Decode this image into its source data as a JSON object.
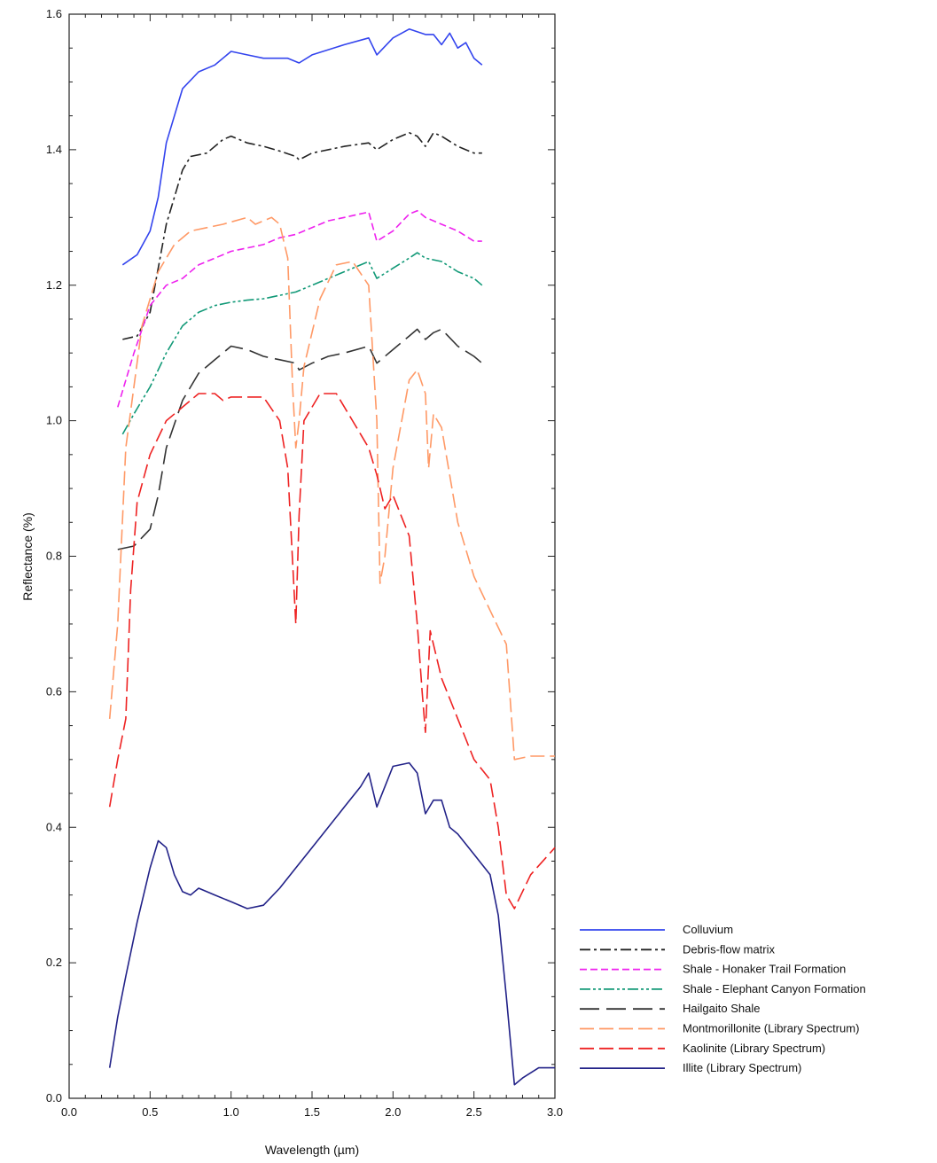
{
  "chart_data": {
    "type": "line",
    "title": "",
    "xlabel": "Wavelength (µm)",
    "ylabel": "Reflectance (%)",
    "xlim": [
      0.0,
      3.0
    ],
    "ylim": [
      0.0,
      1.6
    ],
    "xticks": [
      "0.0",
      "0.5",
      "1.0",
      "1.5",
      "2.0",
      "2.5",
      "3.0"
    ],
    "yticks": [
      "0.0",
      "0.2",
      "0.4",
      "0.6",
      "0.8",
      "1.0",
      "1.2",
      "1.4",
      "1.6"
    ],
    "grid": false,
    "legend_position": "bottom-right outside",
    "series": [
      {
        "name": "Colluvium",
        "color": "#3344ee",
        "dash": "solid",
        "points": [
          [
            0.33,
            1.23
          ],
          [
            0.42,
            1.245
          ],
          [
            0.5,
            1.28
          ],
          [
            0.55,
            1.33
          ],
          [
            0.6,
            1.41
          ],
          [
            0.7,
            1.49
          ],
          [
            0.8,
            1.515
          ],
          [
            0.9,
            1.525
          ],
          [
            1.0,
            1.545
          ],
          [
            1.1,
            1.54
          ],
          [
            1.2,
            1.535
          ],
          [
            1.35,
            1.535
          ],
          [
            1.42,
            1.528
          ],
          [
            1.5,
            1.54
          ],
          [
            1.7,
            1.555
          ],
          [
            1.85,
            1.565
          ],
          [
            1.9,
            1.54
          ],
          [
            2.0,
            1.565
          ],
          [
            2.1,
            1.578
          ],
          [
            2.2,
            1.57
          ],
          [
            2.25,
            1.57
          ],
          [
            2.3,
            1.555
          ],
          [
            2.35,
            1.572
          ],
          [
            2.4,
            1.55
          ],
          [
            2.45,
            1.558
          ],
          [
            2.5,
            1.535
          ],
          [
            2.55,
            1.525
          ]
        ]
      },
      {
        "name": "Debris-flow matrix",
        "color": "#222222",
        "dash": "dashdot",
        "points": [
          [
            0.33,
            1.12
          ],
          [
            0.42,
            1.125
          ],
          [
            0.5,
            1.16
          ],
          [
            0.6,
            1.29
          ],
          [
            0.7,
            1.37
          ],
          [
            0.75,
            1.39
          ],
          [
            0.85,
            1.395
          ],
          [
            0.95,
            1.415
          ],
          [
            1.0,
            1.42
          ],
          [
            1.1,
            1.41
          ],
          [
            1.2,
            1.405
          ],
          [
            1.3,
            1.398
          ],
          [
            1.4,
            1.39
          ],
          [
            1.42,
            1.385
          ],
          [
            1.5,
            1.395
          ],
          [
            1.7,
            1.405
          ],
          [
            1.85,
            1.41
          ],
          [
            1.9,
            1.4
          ],
          [
            2.0,
            1.415
          ],
          [
            2.1,
            1.425
          ],
          [
            2.15,
            1.42
          ],
          [
            2.2,
            1.405
          ],
          [
            2.25,
            1.425
          ],
          [
            2.3,
            1.42
          ],
          [
            2.4,
            1.405
          ],
          [
            2.5,
            1.395
          ],
          [
            2.55,
            1.395
          ]
        ]
      },
      {
        "name": "Shale - Honaker Trail Formation",
        "color": "#ee22ee",
        "dash": "shortdash",
        "points": [
          [
            0.3,
            1.02
          ],
          [
            0.4,
            1.1
          ],
          [
            0.5,
            1.17
          ],
          [
            0.6,
            1.2
          ],
          [
            0.7,
            1.21
          ],
          [
            0.8,
            1.23
          ],
          [
            0.9,
            1.24
          ],
          [
            1.0,
            1.25
          ],
          [
            1.1,
            1.255
          ],
          [
            1.2,
            1.26
          ],
          [
            1.3,
            1.27
          ],
          [
            1.4,
            1.275
          ],
          [
            1.5,
            1.285
          ],
          [
            1.6,
            1.295
          ],
          [
            1.7,
            1.3
          ],
          [
            1.85,
            1.308
          ],
          [
            1.9,
            1.265
          ],
          [
            2.0,
            1.28
          ],
          [
            2.1,
            1.305
          ],
          [
            2.15,
            1.31
          ],
          [
            2.2,
            1.3
          ],
          [
            2.3,
            1.29
          ],
          [
            2.4,
            1.28
          ],
          [
            2.5,
            1.265
          ],
          [
            2.55,
            1.265
          ]
        ]
      },
      {
        "name": "Shale - Elephant Canyon Formation",
        "color": "#119977",
        "dash": "dashdotdot",
        "points": [
          [
            0.33,
            0.98
          ],
          [
            0.4,
            1.01
          ],
          [
            0.5,
            1.05
          ],
          [
            0.6,
            1.1
          ],
          [
            0.7,
            1.14
          ],
          [
            0.8,
            1.16
          ],
          [
            0.9,
            1.17
          ],
          [
            1.0,
            1.175
          ],
          [
            1.1,
            1.178
          ],
          [
            1.2,
            1.18
          ],
          [
            1.3,
            1.185
          ],
          [
            1.4,
            1.19
          ],
          [
            1.5,
            1.2
          ],
          [
            1.6,
            1.21
          ],
          [
            1.7,
            1.22
          ],
          [
            1.85,
            1.235
          ],
          [
            1.9,
            1.21
          ],
          [
            2.0,
            1.225
          ],
          [
            2.1,
            1.24
          ],
          [
            2.15,
            1.248
          ],
          [
            2.2,
            1.24
          ],
          [
            2.3,
            1.235
          ],
          [
            2.4,
            1.22
          ],
          [
            2.5,
            1.21
          ],
          [
            2.55,
            1.2
          ]
        ]
      },
      {
        "name": "Hailgaito Shale",
        "color": "#333333",
        "dash": "longdash",
        "points": [
          [
            0.3,
            0.81
          ],
          [
            0.4,
            0.815
          ],
          [
            0.5,
            0.84
          ],
          [
            0.55,
            0.89
          ],
          [
            0.6,
            0.96
          ],
          [
            0.7,
            1.03
          ],
          [
            0.8,
            1.07
          ],
          [
            0.9,
            1.09
          ],
          [
            1.0,
            1.11
          ],
          [
            1.1,
            1.105
          ],
          [
            1.2,
            1.095
          ],
          [
            1.3,
            1.09
          ],
          [
            1.4,
            1.085
          ],
          [
            1.42,
            1.075
          ],
          [
            1.5,
            1.085
          ],
          [
            1.6,
            1.095
          ],
          [
            1.7,
            1.1
          ],
          [
            1.85,
            1.11
          ],
          [
            1.9,
            1.085
          ],
          [
            2.0,
            1.105
          ],
          [
            2.1,
            1.125
          ],
          [
            2.15,
            1.135
          ],
          [
            2.2,
            1.12
          ],
          [
            2.25,
            1.13
          ],
          [
            2.3,
            1.135
          ],
          [
            2.4,
            1.11
          ],
          [
            2.5,
            1.095
          ],
          [
            2.55,
            1.085
          ]
        ]
      },
      {
        "name": "Montmorillonite (Library Spectrum)",
        "color": "#ff9966",
        "dash": "dashed",
        "points": [
          [
            0.25,
            0.56
          ],
          [
            0.3,
            0.7
          ],
          [
            0.35,
            0.96
          ],
          [
            0.45,
            1.14
          ],
          [
            0.55,
            1.22
          ],
          [
            0.65,
            1.26
          ],
          [
            0.75,
            1.28
          ],
          [
            0.85,
            1.285
          ],
          [
            0.95,
            1.29
          ],
          [
            1.1,
            1.3
          ],
          [
            1.15,
            1.29
          ],
          [
            1.25,
            1.3
          ],
          [
            1.3,
            1.29
          ],
          [
            1.35,
            1.24
          ],
          [
            1.38,
            1.05
          ],
          [
            1.4,
            0.96
          ],
          [
            1.42,
            1.0
          ],
          [
            1.45,
            1.08
          ],
          [
            1.55,
            1.18
          ],
          [
            1.65,
            1.23
          ],
          [
            1.75,
            1.235
          ],
          [
            1.85,
            1.2
          ],
          [
            1.9,
            1.0
          ],
          [
            1.92,
            0.76
          ],
          [
            1.95,
            0.8
          ],
          [
            2.0,
            0.93
          ],
          [
            2.1,
            1.06
          ],
          [
            2.15,
            1.075
          ],
          [
            2.2,
            1.04
          ],
          [
            2.22,
            0.93
          ],
          [
            2.25,
            1.01
          ],
          [
            2.3,
            0.99
          ],
          [
            2.4,
            0.85
          ],
          [
            2.5,
            0.77
          ],
          [
            2.6,
            0.72
          ],
          [
            2.7,
            0.67
          ],
          [
            2.75,
            0.5
          ],
          [
            2.85,
            0.505
          ],
          [
            3.0,
            0.505
          ]
        ]
      },
      {
        "name": "Kaolinite (Library Spectrum)",
        "color": "#ee2222",
        "dash": "dashed",
        "points": [
          [
            0.25,
            0.43
          ],
          [
            0.3,
            0.5
          ],
          [
            0.35,
            0.56
          ],
          [
            0.38,
            0.75
          ],
          [
            0.42,
            0.88
          ],
          [
            0.5,
            0.95
          ],
          [
            0.6,
            1.0
          ],
          [
            0.7,
            1.02
          ],
          [
            0.8,
            1.04
          ],
          [
            0.9,
            1.04
          ],
          [
            0.95,
            1.03
          ],
          [
            1.0,
            1.035
          ],
          [
            1.1,
            1.035
          ],
          [
            1.2,
            1.035
          ],
          [
            1.3,
            1.0
          ],
          [
            1.35,
            0.93
          ],
          [
            1.4,
            0.7
          ],
          [
            1.42,
            0.86
          ],
          [
            1.45,
            1.0
          ],
          [
            1.55,
            1.04
          ],
          [
            1.65,
            1.04
          ],
          [
            1.75,
            1.0
          ],
          [
            1.85,
            0.96
          ],
          [
            1.9,
            0.92
          ],
          [
            1.95,
            0.87
          ],
          [
            2.0,
            0.89
          ],
          [
            2.1,
            0.83
          ],
          [
            2.15,
            0.7
          ],
          [
            2.18,
            0.6
          ],
          [
            2.2,
            0.54
          ],
          [
            2.23,
            0.69
          ],
          [
            2.3,
            0.62
          ],
          [
            2.4,
            0.56
          ],
          [
            2.5,
            0.5
          ],
          [
            2.6,
            0.47
          ],
          [
            2.65,
            0.4
          ],
          [
            2.7,
            0.3
          ],
          [
            2.75,
            0.28
          ],
          [
            2.85,
            0.33
          ],
          [
            3.0,
            0.37
          ]
        ]
      },
      {
        "name": "Illite (Library Spectrum)",
        "color": "#222288",
        "dash": "solid",
        "points": [
          [
            0.25,
            0.045
          ],
          [
            0.3,
            0.12
          ],
          [
            0.35,
            0.18
          ],
          [
            0.42,
            0.26
          ],
          [
            0.5,
            0.34
          ],
          [
            0.55,
            0.38
          ],
          [
            0.6,
            0.37
          ],
          [
            0.65,
            0.33
          ],
          [
            0.7,
            0.305
          ],
          [
            0.75,
            0.3
          ],
          [
            0.8,
            0.31
          ],
          [
            0.85,
            0.305
          ],
          [
            0.9,
            0.3
          ],
          [
            1.0,
            0.29
          ],
          [
            1.1,
            0.28
          ],
          [
            1.2,
            0.285
          ],
          [
            1.3,
            0.31
          ],
          [
            1.4,
            0.34
          ],
          [
            1.5,
            0.37
          ],
          [
            1.6,
            0.4
          ],
          [
            1.7,
            0.43
          ],
          [
            1.8,
            0.46
          ],
          [
            1.85,
            0.48
          ],
          [
            1.9,
            0.43
          ],
          [
            1.95,
            0.46
          ],
          [
            2.0,
            0.49
          ],
          [
            2.1,
            0.495
          ],
          [
            2.15,
            0.48
          ],
          [
            2.2,
            0.42
          ],
          [
            2.25,
            0.44
          ],
          [
            2.3,
            0.44
          ],
          [
            2.35,
            0.4
          ],
          [
            2.4,
            0.39
          ],
          [
            2.5,
            0.36
          ],
          [
            2.6,
            0.33
          ],
          [
            2.65,
            0.27
          ],
          [
            2.7,
            0.15
          ],
          [
            2.75,
            0.02
          ],
          [
            2.8,
            0.03
          ],
          [
            2.9,
            0.045
          ],
          [
            3.0,
            0.045
          ]
        ]
      }
    ]
  }
}
